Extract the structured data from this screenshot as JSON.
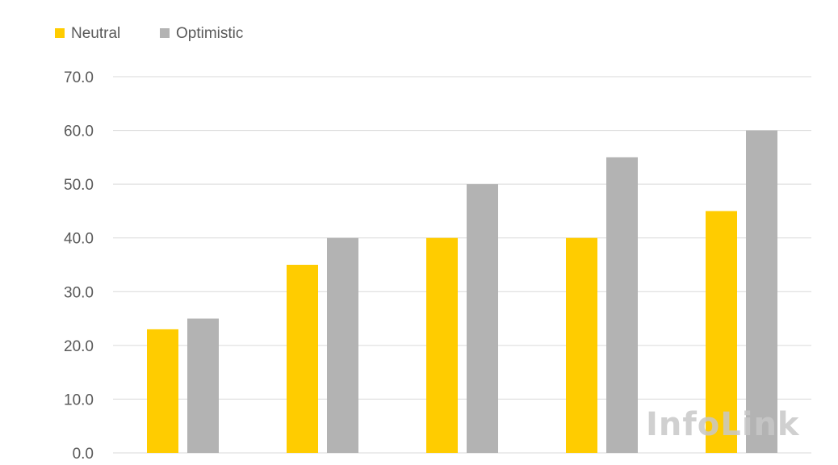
{
  "chart_data": {
    "type": "bar",
    "title": "",
    "xlabel": "",
    "ylabel": "",
    "categories": [
      "",
      "",
      "",
      "",
      ""
    ],
    "series": [
      {
        "name": "Neutral",
        "color": "#FFCC00",
        "values": [
          23,
          35,
          40,
          40,
          45
        ]
      },
      {
        "name": "Optimistic",
        "color": "#B3B3B3",
        "values": [
          25,
          40,
          50,
          55,
          60
        ]
      }
    ],
    "ylim": [
      0,
      70
    ],
    "yticks": [
      "0.0",
      "10.0",
      "20.0",
      "30.0",
      "40.0",
      "50.0",
      "60.0",
      "70.0"
    ],
    "grid": true,
    "legend_position": "top-left"
  },
  "watermark": "InfoLink"
}
